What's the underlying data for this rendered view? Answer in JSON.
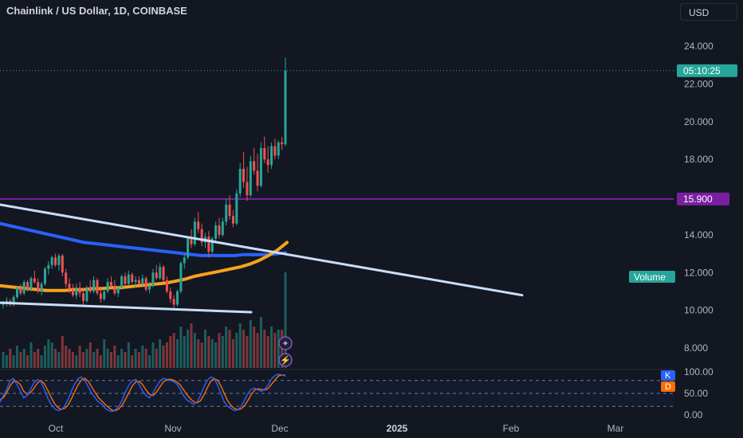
{
  "header": {
    "title": "Chainlink / US Dollar, 1D, COINBASE",
    "currency_button": "USD"
  },
  "price_axis": {
    "ticks": [
      "24.000",
      "22.000",
      "20.000",
      "18.000",
      "14.000",
      "12.000",
      "10.000",
      "8.000"
    ]
  },
  "badges": {
    "last_price_countdown": "05:10:25",
    "level_price": "15.900",
    "volume_label": "Volume"
  },
  "oscillator": {
    "ticks": [
      "100.00",
      "50.00",
      "0.00"
    ],
    "k_label": "K",
    "d_label": "D"
  },
  "time_axis": {
    "labels": [
      "Oct",
      "Nov",
      "Dec",
      "2025",
      "Feb",
      "Mar"
    ]
  },
  "colors": {
    "background": "#131722",
    "up": "#26a69a",
    "down": "#ef5350",
    "level_line": "#7b1fa2",
    "ma_blue": "#2962ff",
    "ma_orange": "#f7a21b",
    "trendline": "#c9def8",
    "k_line": "#2962ff",
    "d_line": "#ff6d00"
  },
  "icons": [
    "sparkle-icon",
    "lightning-icon"
  ],
  "chart_data": {
    "type": "candlestick",
    "title": "Chainlink / US Dollar, 1D, COINBASE",
    "ylim": [
      7.5,
      24.5
    ],
    "level_line": 15.9,
    "last_price": 22.7,
    "candles": [
      [
        10.3,
        10.5,
        10.1,
        10.4
      ],
      [
        10.4,
        10.7,
        10.2,
        10.5
      ],
      [
        10.5,
        10.6,
        10.2,
        10.3
      ],
      [
        10.3,
        10.8,
        10.2,
        10.7
      ],
      [
        10.7,
        11.3,
        10.6,
        11.2
      ],
      [
        11.2,
        11.4,
        10.8,
        10.9
      ],
      [
        10.9,
        11.6,
        10.8,
        11.5
      ],
      [
        11.5,
        11.6,
        11.0,
        11.1
      ],
      [
        11.1,
        11.8,
        11.0,
        11.7
      ],
      [
        11.7,
        12.1,
        11.4,
        11.5
      ],
      [
        11.5,
        11.7,
        10.9,
        11.0
      ],
      [
        11.0,
        11.5,
        10.8,
        11.4
      ],
      [
        11.4,
        12.3,
        11.3,
        12.2
      ],
      [
        12.2,
        12.6,
        11.9,
        12.4
      ],
      [
        12.4,
        12.9,
        12.2,
        12.8
      ],
      [
        12.8,
        13.0,
        12.3,
        12.4
      ],
      [
        12.4,
        13.0,
        12.1,
        12.9
      ],
      [
        12.9,
        13.0,
        11.8,
        12.0
      ],
      [
        12.0,
        12.2,
        11.2,
        11.4
      ],
      [
        11.4,
        11.7,
        10.9,
        11.1
      ],
      [
        11.1,
        11.4,
        10.7,
        10.8
      ],
      [
        10.8,
        11.4,
        10.6,
        11.2
      ],
      [
        11.2,
        11.5,
        10.7,
        10.9
      ],
      [
        10.9,
        11.2,
        10.3,
        10.5
      ],
      [
        10.5,
        11.3,
        10.4,
        11.2
      ],
      [
        11.2,
        11.6,
        10.9,
        11.0
      ],
      [
        11.0,
        11.8,
        10.9,
        11.6
      ],
      [
        11.6,
        11.7,
        10.8,
        10.9
      ],
      [
        10.9,
        11.2,
        10.4,
        10.6
      ],
      [
        10.6,
        11.1,
        10.5,
        11.0
      ],
      [
        11.0,
        11.7,
        10.9,
        11.5
      ],
      [
        11.5,
        11.8,
        11.2,
        11.3
      ],
      [
        11.3,
        11.6,
        10.8,
        10.9
      ],
      [
        10.9,
        11.3,
        10.7,
        11.2
      ],
      [
        11.2,
        11.9,
        11.1,
        11.8
      ],
      [
        11.8,
        12.0,
        11.3,
        11.4
      ],
      [
        11.4,
        12.1,
        11.3,
        11.9
      ],
      [
        11.9,
        12.0,
        11.4,
        11.5
      ],
      [
        11.5,
        11.8,
        11.2,
        11.6
      ],
      [
        11.6,
        11.8,
        11.3,
        11.4
      ],
      [
        11.4,
        11.9,
        11.3,
        11.7
      ],
      [
        11.7,
        11.8,
        11.0,
        11.1
      ],
      [
        11.1,
        11.5,
        10.9,
        11.3
      ],
      [
        11.3,
        12.2,
        11.2,
        12.0
      ],
      [
        12.0,
        12.4,
        11.6,
        11.7
      ],
      [
        11.7,
        12.5,
        11.6,
        12.3
      ],
      [
        12.3,
        12.4,
        11.5,
        11.6
      ],
      [
        11.6,
        11.8,
        10.9,
        11.0
      ],
      [
        11.0,
        11.2,
        10.4,
        10.6
      ],
      [
        10.6,
        10.8,
        10.1,
        10.3
      ],
      [
        10.3,
        11.1,
        10.2,
        11.0
      ],
      [
        11.0,
        12.6,
        10.9,
        12.5
      ],
      [
        12.5,
        13.0,
        12.2,
        12.8
      ],
      [
        12.8,
        13.9,
        12.7,
        13.8
      ],
      [
        13.8,
        14.3,
        13.3,
        13.5
      ],
      [
        13.5,
        14.9,
        13.4,
        14.7
      ],
      [
        14.7,
        15.2,
        14.1,
        14.3
      ],
      [
        14.3,
        14.6,
        13.4,
        13.6
      ],
      [
        13.6,
        14.1,
        13.3,
        13.9
      ],
      [
        13.9,
        14.2,
        12.8,
        13.1
      ],
      [
        13.1,
        13.9,
        13.0,
        13.8
      ],
      [
        13.8,
        14.7,
        13.6,
        14.5
      ],
      [
        14.5,
        14.9,
        13.8,
        14.0
      ],
      [
        14.0,
        14.9,
        13.9,
        14.7
      ],
      [
        14.7,
        15.9,
        14.5,
        15.6
      ],
      [
        15.6,
        16.1,
        14.8,
        15.0
      ],
      [
        15.0,
        15.3,
        14.4,
        14.6
      ],
      [
        14.6,
        16.4,
        14.5,
        16.2
      ],
      [
        16.2,
        17.8,
        16.0,
        17.5
      ],
      [
        17.5,
        18.4,
        16.5,
        16.8
      ],
      [
        16.8,
        17.6,
        15.8,
        16.1
      ],
      [
        16.1,
        18.2,
        16.0,
        17.9
      ],
      [
        17.9,
        18.6,
        17.2,
        17.4
      ],
      [
        17.4,
        18.3,
        16.3,
        16.6
      ],
      [
        16.6,
        18.9,
        16.5,
        18.6
      ],
      [
        18.6,
        19.2,
        17.8,
        18.0
      ],
      [
        18.0,
        18.7,
        17.3,
        17.7
      ],
      [
        17.7,
        18.9,
        17.5,
        18.7
      ],
      [
        18.7,
        19.1,
        18.0,
        18.2
      ],
      [
        18.2,
        19.0,
        18.0,
        18.9
      ],
      [
        18.9,
        19.2,
        18.5,
        18.8
      ],
      [
        18.8,
        23.4,
        18.7,
        22.7
      ]
    ],
    "volume": [
      5,
      4,
      6,
      4,
      7,
      5,
      6,
      4,
      8,
      5,
      6,
      4,
      7,
      9,
      8,
      6,
      5,
      10,
      7,
      6,
      5,
      4,
      7,
      5,
      6,
      8,
      5,
      6,
      4,
      9,
      6,
      5,
      7,
      4,
      6,
      5,
      8,
      4,
      6,
      5,
      7,
      6,
      4,
      8,
      6,
      9,
      7,
      8,
      10,
      11,
      9,
      13,
      10,
      12,
      14,
      11,
      9,
      8,
      12,
      10,
      9,
      8,
      11,
      10,
      13,
      12,
      9,
      11,
      14,
      12,
      10,
      15,
      13,
      11,
      16,
      12,
      10,
      13,
      11,
      12,
      12,
      30
    ],
    "ma_blue_series": [
      14.6,
      14.5,
      14.4,
      14.3,
      14.2,
      14.1,
      14.0,
      13.9,
      13.8,
      13.7,
      13.6,
      13.55,
      13.5,
      13.45,
      13.4,
      13.35,
      13.3,
      13.25,
      13.2,
      13.15,
      13.1,
      13.05,
      13.0,
      12.95,
      12.9,
      12.9,
      12.9,
      12.9,
      12.9,
      12.95,
      12.95,
      12.95,
      12.95,
      13.0,
      13.05
    ],
    "ma_orange_series": [
      11.3,
      11.25,
      11.2,
      11.15,
      11.1,
      11.05,
      11.05,
      11.05,
      11.1,
      11.1,
      11.15,
      11.15,
      11.2,
      11.2,
      11.25,
      11.3,
      11.35,
      11.4,
      11.45,
      11.55,
      11.65,
      11.8,
      11.9,
      12.0,
      12.1,
      12.2,
      12.3,
      12.45,
      12.65,
      12.9,
      13.2,
      13.6
    ],
    "trendline_upper": [
      [
        0,
        15.6
      ],
      [
        655,
        10.8
      ]
    ],
    "trendline_lower": [
      [
        0,
        10.4
      ],
      [
        315,
        9.9
      ]
    ],
    "stoch_k": [
      30,
      45,
      60,
      80,
      85,
      70,
      55,
      40,
      45,
      60,
      75,
      82,
      78,
      60,
      40,
      25,
      15,
      10,
      12,
      20,
      35,
      55,
      72,
      85,
      88,
      80,
      65,
      50,
      40,
      30,
      25,
      15,
      10,
      8,
      12,
      20,
      35,
      55,
      70,
      80,
      82,
      70,
      55,
      45,
      40,
      50,
      65,
      78,
      85,
      83,
      80,
      78,
      72,
      60,
      45,
      35,
      30,
      25,
      30,
      45,
      65,
      80,
      88,
      85,
      70,
      50,
      30,
      20,
      15,
      10,
      12,
      20,
      35,
      50,
      60,
      62,
      58,
      55,
      60,
      70,
      85,
      92,
      95,
      93,
      90
    ],
    "stoch_d": [
      35,
      40,
      52,
      68,
      78,
      78,
      70,
      55,
      48,
      52,
      62,
      74,
      80,
      73,
      58,
      42,
      27,
      17,
      13,
      15,
      22,
      37,
      54,
      70,
      82,
      85,
      78,
      65,
      52,
      40,
      32,
      24,
      17,
      11,
      10,
      14,
      23,
      37,
      53,
      68,
      77,
      78,
      70,
      58,
      48,
      45,
      52,
      64,
      76,
      82,
      83,
      81,
      77,
      70,
      59,
      47,
      38,
      31,
      28,
      33,
      46,
      63,
      78,
      84,
      81,
      68,
      50,
      33,
      22,
      15,
      12,
      14,
      22,
      34,
      48,
      58,
      61,
      59,
      58,
      62,
      72,
      82,
      91,
      93,
      92
    ]
  }
}
